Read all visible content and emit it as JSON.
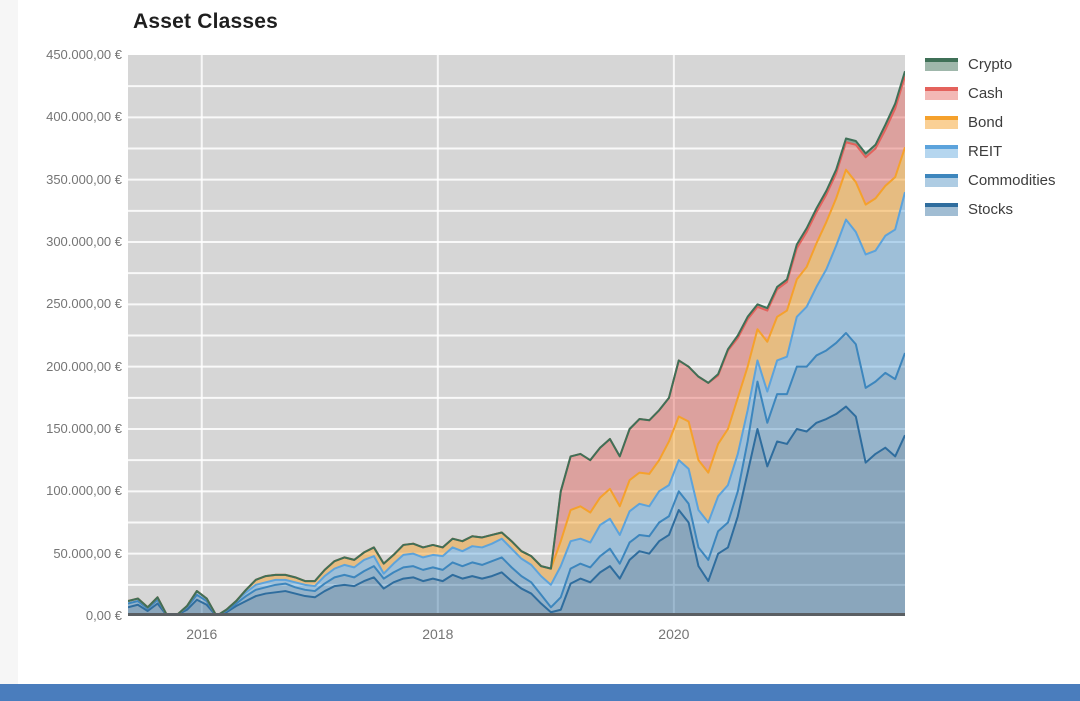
{
  "page": {
    "title": "Asset Classes"
  },
  "colors": {
    "plot_background": "#d6d6d6",
    "gridline": "#ffffff",
    "axis_line": "#5a5f63",
    "title_text": "#1f1f1f",
    "tick_text": "#757575",
    "legend_text": "#3d3d3d",
    "bottom_bar": "#4a7dbd"
  },
  "chart_data": {
    "type": "area",
    "stacked": true,
    "title": "Asset Classes",
    "xlabel": "",
    "ylabel": "",
    "ylim": [
      0,
      450000
    ],
    "grid": {
      "horizontal_step": 25000,
      "vertical_years": [
        "2016",
        "2018",
        "2020"
      ],
      "grid_on": true
    },
    "legend_position": "right",
    "legend_order_top_to_bottom": [
      "Crypto",
      "Cash",
      "Bond",
      "REIT",
      "Commodities",
      "Stocks"
    ],
    "y_ticks": [
      "0,00 €",
      "50.000,00 €",
      "100.000,00 €",
      "150.000,00 €",
      "200.000,00 €",
      "250.000,00 €",
      "300.000,00 €",
      "350.000,00 €",
      "400.000,00 €",
      "450.000,00 €"
    ],
    "x_ticks": [
      {
        "label": "2016",
        "month_index": 7.5
      },
      {
        "label": "2018",
        "month_index": 31.5
      },
      {
        "label": "2020",
        "month_index": 55.5
      }
    ],
    "months": [
      "2015-05",
      "2015-06",
      "2015-07",
      "2015-08",
      "2015-09",
      "2015-10",
      "2015-11",
      "2015-12",
      "2016-01",
      "2016-02",
      "2016-03",
      "2016-04",
      "2016-05",
      "2016-06",
      "2016-07",
      "2016-08",
      "2016-09",
      "2016-10",
      "2016-11",
      "2016-12",
      "2017-01",
      "2017-02",
      "2017-03",
      "2017-04",
      "2017-05",
      "2017-06",
      "2017-07",
      "2017-08",
      "2017-09",
      "2017-10",
      "2017-11",
      "2017-12",
      "2018-01",
      "2018-02",
      "2018-03",
      "2018-04",
      "2018-05",
      "2018-06",
      "2018-07",
      "2018-08",
      "2018-09",
      "2018-10",
      "2018-11",
      "2018-12",
      "2019-01",
      "2019-02",
      "2019-03",
      "2019-04",
      "2019-05",
      "2019-06",
      "2019-07",
      "2019-08",
      "2019-09",
      "2019-10",
      "2019-11",
      "2019-12",
      "2020-01",
      "2020-02",
      "2020-03",
      "2020-04",
      "2020-05",
      "2020-06",
      "2020-07",
      "2020-08",
      "2020-09",
      "2020-10",
      "2020-11",
      "2020-12",
      "2021-01",
      "2021-02",
      "2021-03",
      "2021-04",
      "2021-05",
      "2021-06",
      "2021-07",
      "2021-08",
      "2021-09",
      "2021-10",
      "2021-11",
      "2021-12"
    ],
    "series": [
      {
        "name": "Stocks",
        "line": "#2f6d9e",
        "fill": "rgba(47,109,158,0.45)",
        "values": [
          7000,
          9000,
          4000,
          10000,
          0,
          1000,
          5000,
          13000,
          9000,
          0,
          3000,
          8000,
          12000,
          16000,
          18000,
          19000,
          20000,
          18000,
          16000,
          15000,
          20000,
          24000,
          25000,
          24000,
          28000,
          31000,
          22000,
          27000,
          30000,
          31000,
          28000,
          30000,
          28000,
          33000,
          30000,
          32000,
          30000,
          32000,
          35000,
          28000,
          22000,
          18000,
          10000,
          3000,
          5000,
          26000,
          30000,
          27000,
          35000,
          40000,
          30000,
          45000,
          52000,
          50000,
          60000,
          65000,
          85000,
          75000,
          40000,
          28000,
          50000,
          55000,
          80000,
          115000,
          150000,
          120000,
          140000,
          138000,
          150000,
          148000,
          155000,
          158000,
          162000,
          168000,
          160000,
          123000,
          130000,
          135000,
          128000,
          145000
        ]
      },
      {
        "name": "Commodities",
        "line": "#3d86bd",
        "fill": "rgba(61,134,189,0.42)",
        "values": [
          3000,
          3000,
          2000,
          3000,
          0,
          0,
          2000,
          4000,
          3000,
          0,
          1000,
          2000,
          4000,
          5000,
          5000,
          6000,
          6000,
          5000,
          5000,
          5000,
          6000,
          7000,
          8000,
          7000,
          8000,
          9000,
          8000,
          8000,
          9000,
          9000,
          9000,
          9000,
          9000,
          10000,
          10000,
          11000,
          11000,
          12000,
          12000,
          11000,
          10000,
          9000,
          7000,
          4000,
          10000,
          12000,
          12000,
          12000,
          13000,
          14000,
          12000,
          14000,
          13000,
          14000,
          15000,
          15000,
          15000,
          15000,
          15000,
          17000,
          18000,
          20000,
          20000,
          25000,
          38000,
          35000,
          38000,
          40000,
          50000,
          52000,
          54000,
          55000,
          57000,
          59000,
          58000,
          60000,
          58000,
          60000,
          62000,
          66000
        ]
      },
      {
        "name": "REIT",
        "line": "#5ca3dc",
        "fill": "rgba(92,163,220,0.45)",
        "values": [
          2000,
          2000,
          1000,
          2000,
          0,
          0,
          1000,
          3000,
          2000,
          0,
          1000,
          2000,
          3000,
          4000,
          4000,
          4000,
          3000,
          4000,
          4000,
          4000,
          6000,
          7000,
          8000,
          8000,
          9000,
          8000,
          4000,
          7000,
          10000,
          10000,
          10000,
          10000,
          11000,
          12000,
          12000,
          13000,
          14000,
          14000,
          15000,
          15000,
          14000,
          14000,
          15000,
          18000,
          25000,
          22000,
          20000,
          20000,
          25000,
          24000,
          23000,
          25000,
          25000,
          24000,
          25000,
          25000,
          25000,
          28000,
          30000,
          30000,
          28000,
          30000,
          30000,
          25000,
          17000,
          25000,
          27000,
          30000,
          40000,
          48000,
          55000,
          65000,
          78000,
          91000,
          90000,
          107000,
          105000,
          110000,
          120000,
          129000
        ]
      },
      {
        "name": "Bond",
        "line": "#f5a12c",
        "fill": "rgba(245,161,44,0.5)",
        "values": [
          0,
          0,
          0,
          0,
          0,
          0,
          0,
          0,
          0,
          0,
          0,
          0,
          2000,
          4000,
          5000,
          4000,
          4000,
          4000,
          3000,
          4000,
          5000,
          6000,
          6000,
          6000,
          6000,
          7000,
          8000,
          7000,
          8000,
          8000,
          8000,
          8000,
          7000,
          7000,
          8000,
          8000,
          8000,
          7000,
          5000,
          6000,
          6000,
          7000,
          8000,
          13000,
          20000,
          25000,
          26000,
          24000,
          22000,
          24000,
          23000,
          25000,
          25000,
          26000,
          25000,
          35000,
          35000,
          38000,
          40000,
          40000,
          42000,
          45000,
          45000,
          35000,
          25000,
          40000,
          35000,
          37000,
          30000,
          32000,
          35000,
          38000,
          38000,
          40000,
          40000,
          40000,
          42000,
          40000,
          42000,
          36000
        ]
      },
      {
        "name": "Cash",
        "line": "#e4625c",
        "fill": "rgba(228,98,92,0.45)",
        "values": [
          0,
          0,
          0,
          0,
          0,
          0,
          0,
          0,
          0,
          0,
          0,
          0,
          0,
          0,
          0,
          0,
          0,
          0,
          0,
          0,
          0,
          0,
          0,
          0,
          0,
          0,
          0,
          0,
          0,
          0,
          0,
          0,
          0,
          0,
          0,
          0,
          0,
          0,
          0,
          0,
          0,
          0,
          0,
          0,
          40000,
          43000,
          42000,
          42000,
          40000,
          40000,
          40000,
          41000,
          43000,
          43000,
          40000,
          35000,
          45000,
          44000,
          67000,
          72000,
          55000,
          63000,
          48000,
          38000,
          18000,
          25000,
          22000,
          23000,
          25000,
          28000,
          25000,
          22000,
          20000,
          22000,
          30000,
          38000,
          40000,
          45000,
          55000,
          57000
        ]
      },
      {
        "name": "Crypto",
        "line": "#3f7057",
        "fill": "rgba(63,112,87,0.5)",
        "values": [
          0,
          0,
          0,
          0,
          0,
          0,
          0,
          0,
          0,
          0,
          0,
          0,
          0,
          0,
          0,
          0,
          0,
          0,
          0,
          0,
          0,
          0,
          0,
          0,
          0,
          0,
          0,
          0,
          0,
          0,
          0,
          0,
          0,
          0,
          0,
          0,
          0,
          0,
          0,
          0,
          0,
          0,
          0,
          0,
          0,
          0,
          0,
          0,
          0,
          0,
          0,
          0,
          0,
          0,
          0,
          0,
          0,
          0,
          0,
          0,
          1000,
          1000,
          2000,
          2000,
          2000,
          2000,
          2000,
          2000,
          3000,
          3000,
          3000,
          3000,
          3000,
          3000,
          3000,
          3000,
          3000,
          4000,
          4000,
          4000
        ]
      }
    ]
  }
}
